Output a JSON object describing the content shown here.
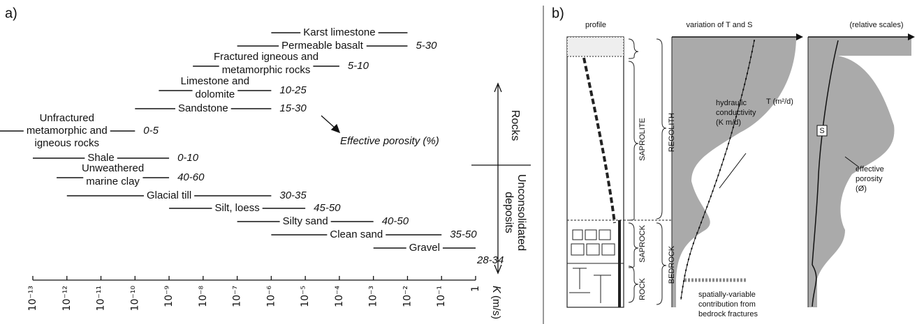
{
  "panel_a": {
    "type": "range",
    "label": "a)",
    "x_label": "K",
    "x_unit": "(m/s)",
    "xscale": "log",
    "xlim": [
      1e-13,
      1
    ],
    "xticks": [
      {
        "value": 1e-13,
        "label": "10⁻¹³"
      },
      {
        "value": 1e-12,
        "label": "10⁻¹²"
      },
      {
        "value": 1e-11,
        "label": "10⁻¹¹"
      },
      {
        "value": 1e-10,
        "label": "10⁻¹⁰"
      },
      {
        "value": 1e-09,
        "label": "10⁻⁹"
      },
      {
        "value": 1e-08,
        "label": "10⁻⁸"
      },
      {
        "value": 1e-07,
        "label": "10⁻⁷"
      },
      {
        "value": 1e-06,
        "label": "10⁻⁶"
      },
      {
        "value": 1e-05,
        "label": "10⁻⁵"
      },
      {
        "value": 0.0001,
        "label": "10⁻⁴"
      },
      {
        "value": 0.001,
        "label": "10⁻³"
      },
      {
        "value": 0.01,
        "label": "10⁻²"
      },
      {
        "value": 0.1,
        "label": "10⁻¹"
      },
      1
    ],
    "rocks": [
      {
        "name": [
          "Karst limestone"
        ],
        "range": [
          1e-06,
          0.01
        ]
      },
      {
        "name": [
          "Permeable basalt"
        ],
        "range": [
          1e-07,
          0.01
        ],
        "porosity": "5-30"
      },
      {
        "name": [
          "Fractured igneous and",
          "metamorphic rocks"
        ],
        "range": [
          5e-09,
          0.0001
        ],
        "porosity": "5-10"
      },
      {
        "name": [
          "Limestone and",
          "dolomite"
        ],
        "range": [
          5e-10,
          1e-06
        ],
        "porosity": "10-25"
      },
      {
        "name": [
          "Sandstone"
        ],
        "range": [
          1e-10,
          1e-06
        ],
        "porosity": "15-30"
      },
      {
        "name": [
          "Unfractured",
          "metamorphic and",
          "igneous rocks"
        ],
        "range": [
          1e-14,
          1e-10
        ],
        "porosity": "0-5"
      },
      {
        "name": [
          "Shale"
        ],
        "range": [
          1e-13,
          1e-09
        ],
        "porosity": "0-10"
      },
      {
        "name": [
          "Unweathered",
          "marine clay"
        ],
        "range": [
          5e-13,
          1e-09
        ],
        "porosity": "40-60"
      },
      {
        "name": [
          "Glacial till"
        ],
        "range": [
          1e-12,
          1e-06
        ],
        "porosity": "30-35"
      },
      {
        "name": [
          "Silt, loess"
        ],
        "range": [
          1e-09,
          1e-05
        ],
        "porosity": "45-50"
      },
      {
        "name": [
          "Silty sand"
        ],
        "range": [
          1e-07,
          0.001
        ],
        "porosity": "40-50"
      },
      {
        "name": [
          "Clean sand"
        ],
        "range": [
          1e-06,
          0.1
        ],
        "porosity": "35-50"
      },
      {
        "name": [
          "Gravel"
        ],
        "range": [
          0.001,
          1
        ],
        "porosity": "28-34"
      }
    ],
    "annotation": "Effective porosity (%)",
    "group_rocks": "Rocks",
    "group_unconsolidated": [
      "Unconsolidated",
      "deposits"
    ]
  },
  "panel_b": {
    "label": "b)",
    "profile": "profile",
    "variation": "variation of T and S",
    "relative": "(relative scales)",
    "regolith": "REGOLITH",
    "bedrock": "BEDROCK",
    "saprolite": "SAPROLITE",
    "saprock": "SAPROCK",
    "rock": "ROCK",
    "hydraulic": [
      "hydraulic",
      "conductivity",
      "(K m/d)"
    ],
    "t_label": "T (m²/d)",
    "s_label": "S",
    "porosity": [
      "effective",
      "porosity",
      "(Ø)"
    ],
    "fractures": [
      "spatially-variable",
      "contribution from",
      "bedrock fractures"
    ]
  }
}
